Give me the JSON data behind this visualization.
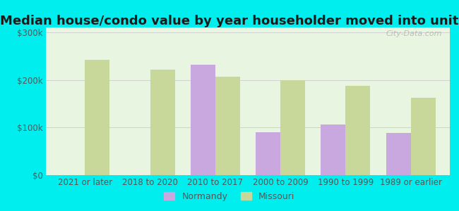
{
  "title": "Median house/condo value by year householder moved into unit",
  "categories": [
    "2021 or later",
    "2018 to 2020",
    "2010 to 2017",
    "2000 to 2009",
    "1990 to 1999",
    "1989 or earlier"
  ],
  "normandy_values": [
    null,
    null,
    232000,
    90000,
    107000,
    88000
  ],
  "missouri_values": [
    242000,
    222000,
    207000,
    200000,
    188000,
    162000
  ],
  "normandy_color": "#c9a8e0",
  "missouri_color": "#c8d89a",
  "background_color": "#00eeee",
  "plot_bg_color": "#e8f5e0",
  "yticks": [
    0,
    100000,
    200000,
    300000
  ],
  "ytick_labels": [
    "$0",
    "$100k",
    "$200k",
    "$300k"
  ],
  "bar_width": 0.38,
  "watermark": "City-Data.com",
  "title_fontsize": 13,
  "tick_fontsize": 8.5,
  "legend_fontsize": 9
}
